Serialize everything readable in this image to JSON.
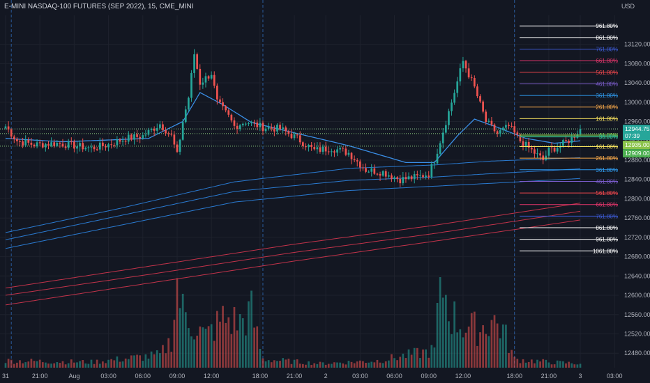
{
  "header": {
    "title": "E-MINI NASDAQ-100 FUTURES (SEP 2022), 15, CME_MINI",
    "currency": "USD"
  },
  "chart_data": {
    "type": "candlestick",
    "title": "E-MINI NASDAQ-100 FUTURES (SEP 2022), 15, CME_MINI",
    "ylabel": "USD",
    "ylim": [
      12450,
      13180
    ],
    "yticks": [
      13120,
      13080,
      13040,
      13000,
      12960,
      12920,
      12880,
      12840,
      12800,
      12760,
      12720,
      12680,
      12640,
      12600,
      12560,
      12520,
      12480
    ],
    "xticks": [
      {
        "label": "31",
        "i": 0
      },
      {
        "label": "21:00",
        "i": 12
      },
      {
        "label": "Aug",
        "i": 24
      },
      {
        "label": "03:00",
        "i": 36
      },
      {
        "label": "06:00",
        "i": 48
      },
      {
        "label": "09:00",
        "i": 60
      },
      {
        "label": "12:00",
        "i": 72
      },
      {
        "label": "18:00",
        "i": 89
      },
      {
        "label": "21:00",
        "i": 101
      },
      {
        "label": "2",
        "i": 112
      },
      {
        "label": "03:00",
        "i": 124
      },
      {
        "label": "06:00",
        "i": 136
      },
      {
        "label": "09:00",
        "i": 148
      },
      {
        "label": "12:00",
        "i": 160
      },
      {
        "label": "18:00",
        "i": 178
      },
      {
        "label": "21:00",
        "i": 190
      },
      {
        "label": "3",
        "i": 201
      },
      {
        "label": "03:00",
        "i": 213
      }
    ],
    "session_breaks": [
      2,
      90,
      178
    ],
    "candle_count": 202,
    "close_keys": [
      [
        0,
        12950
      ],
      [
        4,
        12920
      ],
      [
        10,
        12912
      ],
      [
        18,
        12915
      ],
      [
        24,
        12910
      ],
      [
        30,
        12905
      ],
      [
        36,
        12912
      ],
      [
        42,
        12925
      ],
      [
        48,
        12930
      ],
      [
        54,
        12955
      ],
      [
        58,
        12930
      ],
      [
        60,
        12890
      ],
      [
        62,
        12960
      ],
      [
        64,
        13010
      ],
      [
        66,
        13100
      ],
      [
        68,
        13040
      ],
      [
        72,
        13060
      ],
      [
        74,
        13000
      ],
      [
        78,
        12970
      ],
      [
        80,
        12950
      ],
      [
        84,
        12960
      ],
      [
        90,
        12948
      ],
      [
        96,
        12945
      ],
      [
        102,
        12925
      ],
      [
        108,
        12900
      ],
      [
        114,
        12905
      ],
      [
        120,
        12895
      ],
      [
        126,
        12860
      ],
      [
        132,
        12855
      ],
      [
        138,
        12840
      ],
      [
        144,
        12845
      ],
      [
        148,
        12852
      ],
      [
        150,
        12880
      ],
      [
        152,
        12920
      ],
      [
        156,
        13000
      ],
      [
        160,
        13085
      ],
      [
        164,
        13030
      ],
      [
        168,
        12960
      ],
      [
        172,
        12935
      ],
      [
        176,
        12950
      ],
      [
        180,
        12920
      ],
      [
        184,
        12900
      ],
      [
        188,
        12880
      ],
      [
        190,
        12900
      ],
      [
        194,
        12910
      ],
      [
        198,
        12925
      ],
      [
        201,
        12944.75
      ]
    ],
    "volume_keys": [
      [
        0,
        10
      ],
      [
        30,
        8
      ],
      [
        54,
        18
      ],
      [
        58,
        40
      ],
      [
        60,
        120
      ],
      [
        62,
        80
      ],
      [
        66,
        60
      ],
      [
        70,
        45
      ],
      [
        76,
        70
      ],
      [
        82,
        65
      ],
      [
        86,
        80
      ],
      [
        90,
        12
      ],
      [
        110,
        6
      ],
      [
        130,
        10
      ],
      [
        150,
        25
      ],
      [
        152,
        130
      ],
      [
        156,
        75
      ],
      [
        160,
        60
      ],
      [
        166,
        55
      ],
      [
        170,
        70
      ],
      [
        174,
        55
      ],
      [
        178,
        12
      ],
      [
        190,
        8
      ],
      [
        201,
        6
      ]
    ],
    "bands": {
      "fast_ma": [
        [
          0,
          12925
        ],
        [
          20,
          12918
        ],
        [
          50,
          12925
        ],
        [
          62,
          12960
        ],
        [
          68,
          13020
        ],
        [
          76,
          12995
        ],
        [
          86,
          12958
        ],
        [
          100,
          12938
        ],
        [
          120,
          12910
        ],
        [
          140,
          12875
        ],
        [
          150,
          12875
        ],
        [
          158,
          12930
        ],
        [
          164,
          12965
        ],
        [
          172,
          12948
        ],
        [
          182,
          12925
        ],
        [
          192,
          12915
        ],
        [
          201,
          12920
        ]
      ],
      "blue_upper": [
        [
          0,
          12730
        ],
        [
          40,
          12780
        ],
        [
          80,
          12835
        ],
        [
          120,
          12863
        ],
        [
          150,
          12870
        ],
        [
          170,
          12878
        ],
        [
          201,
          12885
        ]
      ],
      "blue_mid": [
        [
          0,
          12715
        ],
        [
          40,
          12765
        ],
        [
          80,
          12815
        ],
        [
          120,
          12838
        ],
        [
          150,
          12845
        ],
        [
          170,
          12852
        ],
        [
          201,
          12862
        ]
      ],
      "blue_lower": [
        [
          0,
          12697
        ],
        [
          40,
          12745
        ],
        [
          80,
          12793
        ],
        [
          120,
          12817
        ],
        [
          150,
          12826
        ],
        [
          170,
          12832
        ],
        [
          201,
          12842
        ]
      ],
      "red_upper": [
        [
          0,
          12615
        ],
        [
          50,
          12660
        ],
        [
          100,
          12705
        ],
        [
          150,
          12745
        ],
        [
          201,
          12791
        ]
      ],
      "red_mid": [
        [
          0,
          12600
        ],
        [
          50,
          12643
        ],
        [
          100,
          12688
        ],
        [
          150,
          12728
        ],
        [
          201,
          12774
        ]
      ],
      "red_lower": [
        [
          0,
          12580
        ],
        [
          50,
          12625
        ],
        [
          100,
          12670
        ],
        [
          150,
          12712
        ],
        [
          201,
          12756
        ]
      ]
    },
    "dotted_levels": [
      12944.75,
      12935,
      12909
    ],
    "fib_levels": [
      {
        "label": "961.80%",
        "price": 13158,
        "color": "#ffffff"
      },
      {
        "label": "861.80%",
        "price": 13134,
        "color": "#ffffff"
      },
      {
        "label": "761.80%",
        "price": 13110,
        "color": "#3d5bd6"
      },
      {
        "label": "661.80%",
        "price": 13086,
        "color": "#e3366b"
      },
      {
        "label": "561.80%",
        "price": 13062,
        "color": "#f0474d"
      },
      {
        "label": "461.80%",
        "price": 13038,
        "color": "#7b5ccc"
      },
      {
        "label": "361.80%",
        "price": 13014,
        "color": "#2f9bf0"
      },
      {
        "label": "261.80%",
        "price": 12990,
        "color": "#f7a84a"
      },
      {
        "label": "161.80%",
        "price": 12966,
        "color": "#f6e05e"
      },
      {
        "label": "61.80%",
        "price": 12932,
        "color": "#8bc34a"
      },
      {
        "label": "50.00%",
        "price": 12930,
        "color": "#4caf50"
      },
      {
        "label": "38.20%",
        "price": 12928,
        "color": "#26a69a"
      },
      {
        "label": "161.80%",
        "price": 12908,
        "color": "#f6e05e"
      },
      {
        "label": "261.80%",
        "price": 12884,
        "color": "#f7a84a"
      },
      {
        "label": "361.80%",
        "price": 12860,
        "color": "#2f9bf0"
      },
      {
        "label": "461.80%",
        "price": 12836,
        "color": "#7b5ccc"
      },
      {
        "label": "561.80%",
        "price": 12812,
        "color": "#f0474d"
      },
      {
        "label": "661.80%",
        "price": 12788,
        "color": "#e3366b"
      },
      {
        "label": "761.80%",
        "price": 12764,
        "color": "#3d5bd6"
      },
      {
        "label": "861.80%",
        "price": 12740,
        "color": "#ffffff"
      },
      {
        "label": "961.80%",
        "price": 12716,
        "color": "#ffffff"
      },
      {
        "label": "1061.80%",
        "price": 12692,
        "color": "#ffffff"
      }
    ],
    "price_tags": [
      {
        "label": "12944.75",
        "sub": "07:39",
        "price": 12944.75,
        "color": "#26a69a"
      },
      {
        "label": "12935.00",
        "price": 12935,
        "color": "#8bc34a"
      },
      {
        "label": "12909.00",
        "price": 12909,
        "color": "#4caf50"
      }
    ],
    "colors": {
      "background": "#131722",
      "up": "#26a69a",
      "down": "#ef5350",
      "grid": "#1e222d",
      "axis_text": "#b2b5be",
      "session_line": "#2a5a9a",
      "ma_fast": "#3a8ee6",
      "ma_slow_blue": "#2a7ad0",
      "ma_red": "#c2334a"
    }
  }
}
